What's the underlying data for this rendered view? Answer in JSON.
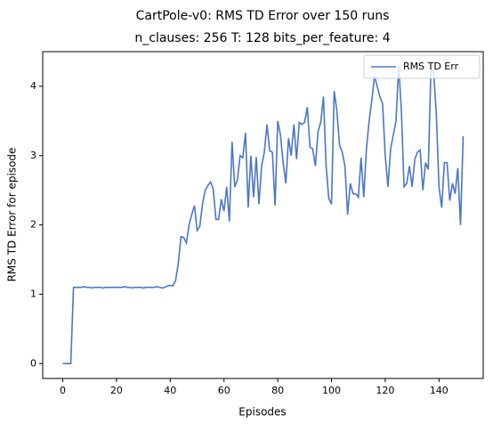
{
  "chart_data": {
    "type": "line",
    "title": "CartPole-v0: RMS TD Error over 150 runs",
    "subtitle": "n_clauses: 256 T: 128 bits_per_feature: 4",
    "xlabel": "Episodes",
    "ylabel": "RMS TD Error for episode",
    "x": [
      0,
      1,
      2,
      3,
      4,
      5,
      6,
      7,
      8,
      9,
      10,
      11,
      12,
      13,
      14,
      15,
      16,
      17,
      18,
      19,
      20,
      21,
      22,
      23,
      24,
      25,
      26,
      27,
      28,
      29,
      30,
      31,
      32,
      33,
      34,
      35,
      36,
      37,
      38,
      39,
      40,
      41,
      42,
      43,
      44,
      45,
      46,
      47,
      48,
      49,
      50,
      51,
      52,
      53,
      54,
      55,
      56,
      57,
      58,
      59,
      60,
      61,
      62,
      63,
      64,
      65,
      66,
      67,
      68,
      69,
      70,
      71,
      72,
      73,
      74,
      75,
      76,
      77,
      78,
      79,
      80,
      81,
      82,
      83,
      84,
      85,
      86,
      87,
      88,
      89,
      90,
      91,
      92,
      93,
      94,
      95,
      96,
      97,
      98,
      99,
      100,
      101,
      102,
      103,
      104,
      105,
      106,
      107,
      108,
      109,
      110,
      111,
      112,
      113,
      114,
      115,
      116,
      117,
      118,
      119,
      120,
      121,
      122,
      123,
      124,
      125,
      126,
      127,
      128,
      129,
      130,
      131,
      132,
      133,
      134,
      135,
      136,
      137,
      138,
      139,
      140,
      141,
      142,
      143,
      144,
      145,
      146,
      147,
      148,
      149
    ],
    "series": [
      {
        "name": "RMS TD Err",
        "color": "#4a76c8",
        "values": [
          0,
          0,
          0,
          0,
          1.1,
          1.1,
          1.1,
          1.1,
          1.11,
          1.1,
          1.1,
          1.09,
          1.1,
          1.1,
          1.1,
          1.09,
          1.1,
          1.1,
          1.1,
          1.1,
          1.1,
          1.1,
          1.1,
          1.11,
          1.1,
          1.1,
          1.09,
          1.1,
          1.1,
          1.1,
          1.09,
          1.1,
          1.1,
          1.1,
          1.1,
          1.11,
          1.1,
          1.09,
          1.1,
          1.12,
          1.13,
          1.12,
          1.2,
          1.45,
          1.83,
          1.82,
          1.74,
          2.0,
          2.15,
          2.28,
          1.92,
          1.98,
          2.3,
          2.5,
          2.57,
          2.62,
          2.52,
          2.08,
          2.08,
          2.37,
          2.2,
          2.55,
          2.05,
          3.2,
          2.55,
          2.65,
          3.0,
          2.97,
          3.33,
          2.25,
          3.0,
          2.4,
          2.98,
          2.3,
          2.85,
          3.05,
          3.45,
          3.07,
          3.05,
          2.28,
          3.5,
          3.3,
          2.9,
          2.6,
          3.25,
          3.0,
          3.45,
          2.95,
          3.48,
          3.45,
          3.48,
          3.7,
          3.12,
          3.1,
          2.85,
          3.35,
          3.48,
          3.85,
          2.85,
          2.38,
          2.3,
          3.93,
          3.65,
          3.15,
          3.05,
          2.85,
          2.15,
          2.6,
          2.45,
          2.45,
          2.4,
          2.97,
          2.4,
          3.1,
          3.5,
          3.8,
          4.15,
          4.0,
          3.85,
          3.75,
          3.0,
          2.55,
          3.1,
          3.3,
          3.5,
          4.3,
          3.65,
          2.55,
          2.6,
          2.85,
          2.55,
          2.95,
          3.05,
          3.08,
          2.5,
          2.9,
          2.8,
          4.25,
          4.2,
          3.6,
          2.55,
          2.25,
          2.9,
          2.9,
          2.35,
          2.6,
          2.45,
          2.82,
          2.0,
          3.28
        ]
      }
    ],
    "xlim": [
      -7.45,
      156.45
    ],
    "xticks": [
      0,
      20,
      40,
      60,
      80,
      100,
      120,
      140
    ],
    "ylim": [
      -0.215,
      4.5
    ],
    "yticks": [
      0,
      1,
      2,
      3,
      4
    ],
    "grid": false,
    "legend": "upper right"
  }
}
